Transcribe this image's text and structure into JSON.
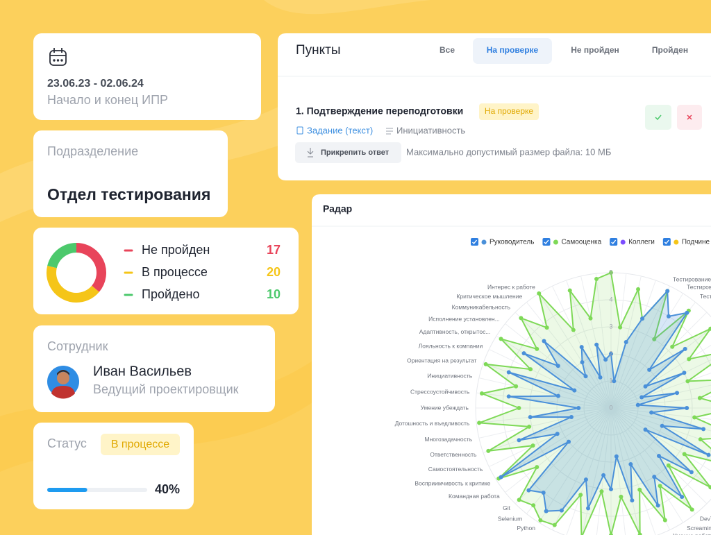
{
  "period": {
    "dates": "23.06.23 - 02.06.24",
    "caption": "Начало и конец ИПР"
  },
  "department": {
    "caption": "Подразделение",
    "name": "Отдел тестирования"
  },
  "summary": {
    "items": [
      {
        "label": "Не пройден",
        "value": 17,
        "color": "#e8445a"
      },
      {
        "label": "В процессе",
        "value": 20,
        "color": "#f5c518"
      },
      {
        "label": "Пройдено",
        "value": 10,
        "color": "#4cc96c"
      }
    ]
  },
  "employee": {
    "caption": "Сотрудник",
    "name": "Иван Васильев",
    "position": "Ведущий проектировщик"
  },
  "status": {
    "caption": "Статус",
    "state": "В процессе",
    "progress": 40,
    "progress_label": "40%"
  },
  "items_panel": {
    "title": "Пункты",
    "tabs": [
      "Все",
      "На проверке",
      "Не пройден",
      "Пройден"
    ],
    "active_tab": 1,
    "items": [
      {
        "title": "1. Подтверждение переподготовки",
        "badge": "На проверке",
        "task": "Задание (текст)",
        "competency": "Инициативность",
        "attach": "Прикрепить ответ",
        "limit": "Максимально допустимый размер файла: 10 МБ"
      }
    ]
  },
  "chart_data": {
    "type": "radar",
    "title": "Радар",
    "categories": [
      null,
      null,
      null,
      null,
      "Тестирование С",
      "Тестиров",
      "Тест",
      null,
      null,
      null,
      null,
      null,
      null,
      null,
      null,
      null,
      null,
      null,
      null,
      null,
      null,
      null,
      "DevT",
      "Screaming",
      "Умение работат",
      null,
      null,
      null,
      null,
      null,
      null,
      null,
      null,
      "Python",
      "Selenium",
      "Git",
      "Командная работа",
      "Восприимчивость к критике",
      "Самостоятельность",
      "Ответственность",
      "Многозадачность",
      "Дотошность и въедливость",
      "Умение убеждать",
      "Стрессоустойчивость",
      "Инициативность",
      "Ориентация на результат",
      "Лояльность к компании",
      "Адаптивность, открытос...",
      "Исполнение установлен...",
      "Коммуникабельность",
      "Критическое мышление",
      "Интерес к работе",
      null,
      null,
      null,
      null
    ],
    "series": [
      {
        "name": "Руководитель",
        "color": "#4a90d9",
        "values": [
          2,
          1,
          2.5,
          3.5,
          4.8,
          4,
          4.5,
          2,
          3.5,
          1.5,
          3,
          1.2,
          2.5,
          1,
          2.8,
          1.5,
          3.5,
          2,
          4,
          1.5,
          3.8,
          2.5,
          4.2,
          3,
          4,
          2.2,
          3.5,
          1.8,
          3,
          2.5,
          3.8,
          2.8,
          4.2,
          4.5,
          4,
          4.3,
          2,
          4.8,
          2.2,
          3.6,
          1.5,
          3,
          1.2,
          3.8,
          2,
          4,
          1.5,
          3.8,
          2.5,
          3.5,
          1.5,
          2,
          2.5,
          1.2,
          2.4,
          1.8
        ]
      },
      {
        "name": "Самооценка",
        "color": "#7ed957",
        "values": [
          5,
          3,
          4.5,
          3.5,
          4.8,
          3,
          4.6,
          3.2,
          4.7,
          3.4,
          4.9,
          3,
          4.8,
          3.3,
          4.6,
          3.1,
          4.8,
          3.5,
          4.9,
          3.2,
          4.7,
          3,
          4.8,
          3.4,
          4.6,
          3.2,
          4.8,
          3.3,
          4.7,
          3.1,
          4.9,
          3.4,
          4.8,
          4.9,
          4.6,
          4.8,
          3.5,
          4.9,
          3.2,
          4.8,
          3.1,
          4.9,
          3.4,
          4.8,
          3.6,
          4.9,
          3.3,
          4.8,
          3.5,
          4.7,
          3.8,
          5,
          3.2,
          4.6,
          3.4,
          4.8
        ]
      },
      {
        "name": "Коллеги",
        "color": "#7c4dff",
        "values": [
          null,
          null,
          null,
          null,
          null,
          null,
          null,
          null,
          null,
          null,
          null,
          null,
          null,
          null,
          null,
          null,
          null,
          null,
          null,
          null,
          null,
          null,
          null,
          null,
          null,
          null,
          null,
          null,
          null,
          null,
          null,
          null,
          null,
          null,
          null,
          null,
          null,
          null,
          null,
          null,
          null,
          null,
          null,
          null,
          null,
          null,
          null,
          null,
          null,
          null,
          null,
          null,
          null,
          null,
          null,
          null
        ]
      },
      {
        "name": "Подчине",
        "color": "#f5c518",
        "values": [
          null,
          null,
          null,
          null,
          null,
          null,
          null,
          null,
          null,
          null,
          null,
          null,
          null,
          null,
          null,
          null,
          null,
          null,
          null,
          null,
          null,
          null,
          null,
          null,
          null,
          null,
          null,
          null,
          null,
          null,
          null,
          null,
          null,
          null,
          null,
          null,
          null,
          null,
          null,
          null,
          null,
          null,
          null,
          null,
          null,
          null,
          null,
          null,
          null,
          null,
          null,
          null,
          null,
          null,
          null,
          null
        ]
      }
    ],
    "ylim": [
      0,
      5
    ],
    "yticks": [
      0,
      1,
      2,
      3,
      4,
      5
    ],
    "grid": true
  }
}
